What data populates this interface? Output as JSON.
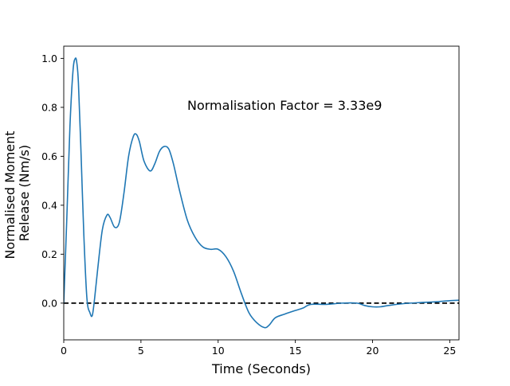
{
  "chart_data": {
    "type": "line",
    "title": "",
    "xlabel": "Time (Seconds)",
    "ylabel_lines": [
      "Normalised Moment",
      "Release (Nm/s)"
    ],
    "xlim": [
      0,
      25.6
    ],
    "ylim": [
      -0.15,
      1.05
    ],
    "xticks": [
      0,
      5,
      10,
      15,
      20,
      25
    ],
    "yticks": [
      0.0,
      0.2,
      0.4,
      0.6,
      0.8,
      1.0
    ],
    "xtick_labels": [
      "0",
      "5",
      "10",
      "15",
      "20",
      "25"
    ],
    "ytick_labels": [
      "0.0",
      "0.2",
      "0.4",
      "0.6",
      "0.8",
      "1.0"
    ],
    "annotation": {
      "text": "Normalisation Factor = 3.33e9",
      "x": 8.0,
      "y": 0.81
    },
    "reference_line": {
      "y": 0.0,
      "style": "dashed",
      "color": "#000000"
    },
    "grid": false,
    "series": [
      {
        "color": "#1f77b4",
        "x": [
          0,
          0.2,
          0.4,
          0.6,
          0.75,
          0.85,
          0.95,
          1.1,
          1.3,
          1.5,
          1.7,
          1.85,
          2.0,
          2.2,
          2.5,
          2.8,
          3.0,
          3.3,
          3.6,
          3.9,
          4.2,
          4.5,
          4.7,
          4.9,
          5.2,
          5.6,
          5.9,
          6.2,
          6.5,
          6.8,
          7.1,
          7.5,
          8.0,
          8.5,
          9.0,
          9.5,
          10.0,
          10.5,
          11.0,
          11.5,
          12.0,
          12.5,
          13.0,
          13.3,
          13.7,
          14.3,
          15.0,
          15.5,
          16.0,
          17.0,
          18.0,
          19.0,
          19.5,
          20.0,
          20.5,
          21.0,
          22.0,
          23.0,
          24.0,
          25.0,
          25.6
        ],
        "y": [
          0.0,
          0.35,
          0.72,
          0.95,
          1.0,
          0.98,
          0.9,
          0.65,
          0.28,
          0.02,
          -0.04,
          -0.05,
          0.02,
          0.14,
          0.3,
          0.36,
          0.35,
          0.31,
          0.33,
          0.45,
          0.6,
          0.68,
          0.69,
          0.66,
          0.58,
          0.54,
          0.57,
          0.62,
          0.64,
          0.63,
          0.57,
          0.46,
          0.34,
          0.27,
          0.23,
          0.22,
          0.22,
          0.19,
          0.13,
          0.04,
          -0.04,
          -0.08,
          -0.1,
          -0.09,
          -0.06,
          -0.045,
          -0.03,
          -0.02,
          -0.005,
          -0.005,
          0.0,
          0.0,
          -0.01,
          -0.015,
          -0.015,
          -0.01,
          -0.002,
          0.002,
          0.005,
          0.01,
          0.012
        ]
      }
    ]
  }
}
